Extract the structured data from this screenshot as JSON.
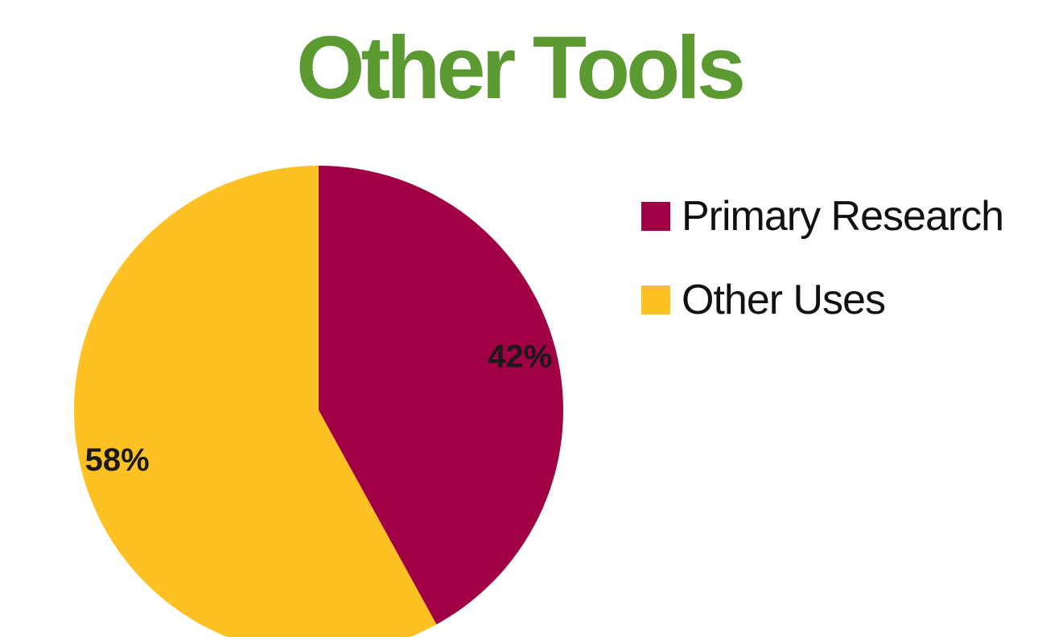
{
  "slide": {
    "title": "Other Tools"
  },
  "colors": {
    "title": "#5a9a31",
    "primary_research": "#a10044",
    "other_uses": "#fdc123"
  },
  "chart_data": {
    "type": "pie",
    "title": "",
    "categories": [
      "Primary Research",
      "Other Uses"
    ],
    "values": [
      42,
      58
    ],
    "labels": [
      "42%",
      "58%"
    ],
    "colors": [
      "#a10044",
      "#fdc123"
    ],
    "start_angle_deg": 0,
    "direction": "clockwise",
    "legend": "right"
  }
}
